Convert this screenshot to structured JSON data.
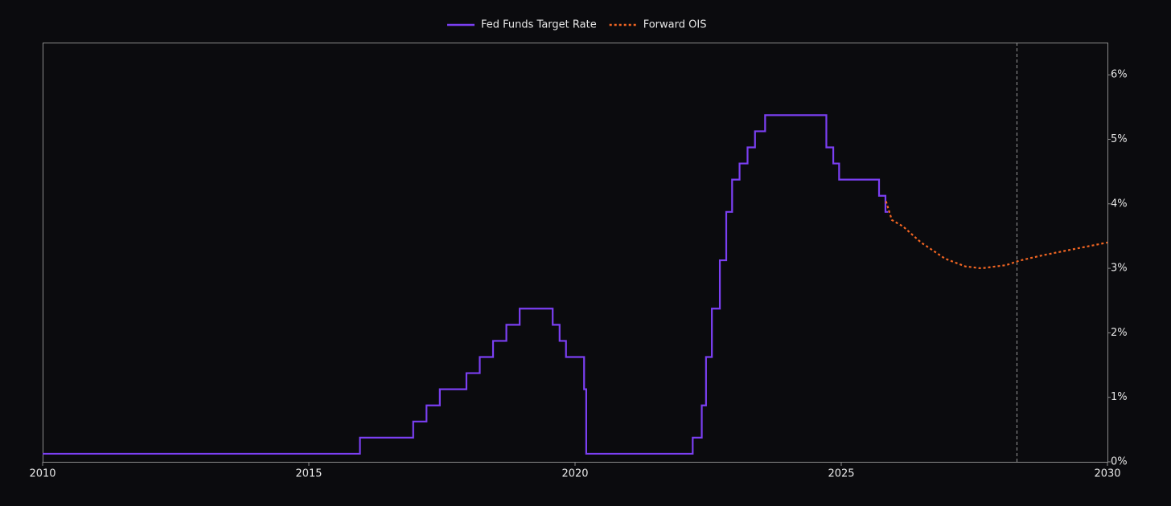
{
  "chart_data": {
    "type": "line",
    "step": true,
    "x": [
      2010,
      2015.96,
      2016.96,
      2017.21,
      2017.46,
      2017.96,
      2018.21,
      2018.46,
      2018.71,
      2018.96,
      2019.58,
      2019.71,
      2019.83,
      2020.17,
      2020.21,
      2022.21,
      2022.38,
      2022.46,
      2022.57,
      2022.72,
      2022.84,
      2022.95,
      2023.09,
      2023.24,
      2023.38,
      2023.57,
      2024.72,
      2024.85,
      2024.96,
      2025.71,
      2025.83,
      2025.88
    ],
    "series": [
      {
        "name": "Fed Funds Target Rate",
        "color": "#7b3ff2",
        "dash": false,
        "values": [
          0.125,
          0.375,
          0.625,
          0.875,
          1.125,
          1.375,
          1.625,
          1.875,
          2.125,
          2.375,
          2.125,
          1.875,
          1.625,
          1.125,
          0.125,
          0.375,
          0.875,
          1.625,
          2.375,
          3.125,
          3.875,
          4.375,
          4.625,
          4.875,
          5.125,
          5.375,
          4.875,
          4.625,
          4.375,
          4.125,
          3.875,
          3.875
        ]
      },
      {
        "name": "Forward OIS",
        "color": "#f26522",
        "dash": true,
        "step": false,
        "x": [
          2025.84,
          2025.95,
          2026.16,
          2026.5,
          2026.95,
          2027.33,
          2027.63,
          2028.1,
          2028.35,
          2028.77,
          2029.38,
          2030
        ],
        "values": [
          4.04,
          3.75,
          3.65,
          3.4,
          3.15,
          3.03,
          3.0,
          3.05,
          3.12,
          3.2,
          3.3,
          3.4
        ]
      }
    ],
    "xlim": [
      2010,
      2030
    ],
    "xticks": [
      2010,
      2015,
      2020,
      2025,
      2030
    ],
    "ylim": [
      0,
      6.5
    ],
    "yticks": [
      {
        "value": 0,
        "label": "0%"
      },
      {
        "value": 1,
        "label": "1%"
      },
      {
        "value": 2,
        "label": "2%"
      },
      {
        "value": 3,
        "label": "3%"
      },
      {
        "value": 4,
        "label": "4%"
      },
      {
        "value": 5,
        "label": "5%"
      },
      {
        "value": 6,
        "label": "6%"
      }
    ],
    "y_axis_side": "right",
    "grid": false,
    "legend": "top",
    "vline": 2028.3
  }
}
